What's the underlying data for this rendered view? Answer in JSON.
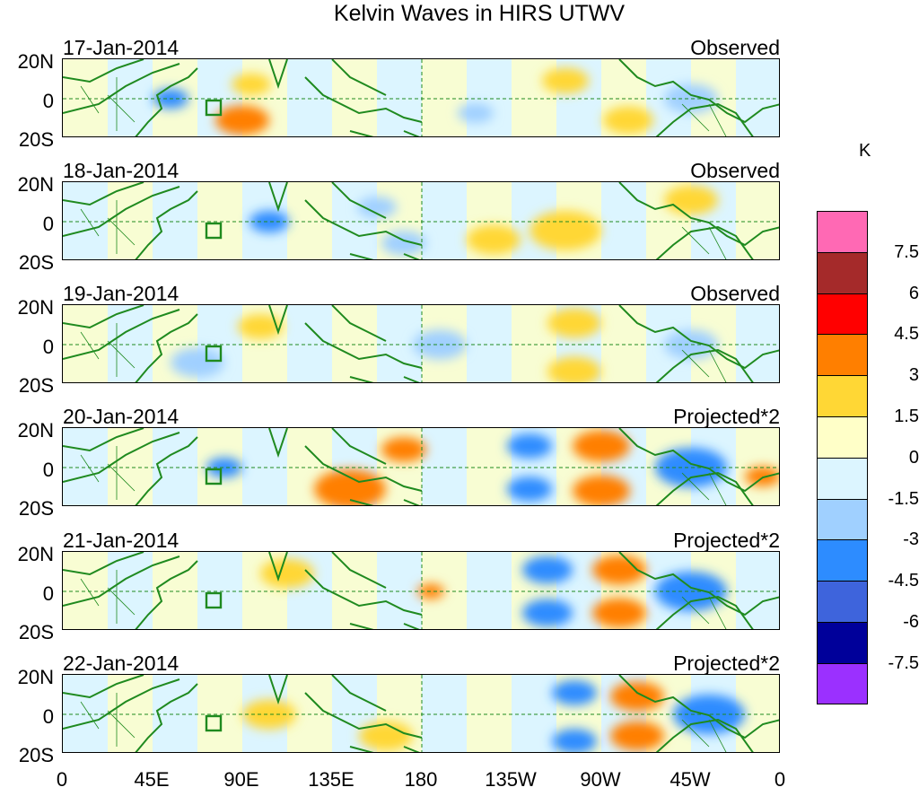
{
  "title": "Kelvin Waves in HIRS UTWV",
  "panels": [
    {
      "date": "17-Jan-2014",
      "kind": "Observed"
    },
    {
      "date": "18-Jan-2014",
      "kind": "Observed"
    },
    {
      "date": "19-Jan-2014",
      "kind": "Observed"
    },
    {
      "date": "20-Jan-2014",
      "kind": "Projected*2"
    },
    {
      "date": "21-Jan-2014",
      "kind": "Projected*2"
    },
    {
      "date": "22-Jan-2014",
      "kind": "Projected*2"
    }
  ],
  "lat_labels": {
    "north": "20N",
    "equator": "0",
    "south": "20S"
  },
  "lon_labels": [
    "0",
    "45E",
    "90E",
    "135E",
    "180",
    "135W",
    "90W",
    "45W",
    "0"
  ],
  "colorbar": {
    "unit": "K",
    "values": [
      "7.5",
      "6",
      "4.5",
      "3",
      "1.5",
      "0",
      "-1.5",
      "-3",
      "-4.5",
      "-6",
      "-7.5"
    ],
    "colors": [
      "#ff69b4",
      "#a52a2a",
      "#ff0000",
      "#ff7f00",
      "#ffd735",
      "#ffffc8",
      "#dcf5ff",
      "#a0d0ff",
      "#2d8cff",
      "#3e64dc",
      "#00009a",
      "#9b30ff"
    ]
  }
}
